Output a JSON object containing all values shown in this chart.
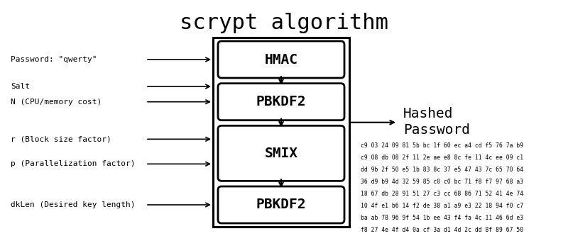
{
  "title": "scrypt algorithm",
  "title_fontsize": 22,
  "title_font": "monospace",
  "bg_color": "#ffffff",
  "inputs": [
    "Password: \"qwerty\"",
    "Salt",
    "N (CPU/memory cost)",
    "r (Block size factor)",
    "p (Parallelization factor)",
    "dkLen (Desired key length)"
  ],
  "box_labels": [
    "HMAC",
    "PBKDF2",
    "SMIX",
    "PBKDF2"
  ],
  "hashed_password_label": "Hashed\nPassword",
  "hash_lines": [
    "c9 03 24 09 81 5b bc 1f 60 ec a4 cd f5 76 7a b9",
    "c9 08 db 08 2f 11 2e ae e8 8c fe 11 4c ee 09 c1",
    "dd 9b 2f 50 e5 1b 83 8c 37 e5 47 43 7c 65 70 64",
    "36 d9 b9 4d 32 59 85 c0 c0 bc 71 f8 f7 97 68 a3",
    "18 67 db 28 91 51 27 c3 cc 68 86 71 52 41 4e 74",
    "10 4f e1 b6 14 f2 de 38 a1 a9 e3 22 18 94 f0 c7",
    "ba ab 78 96 9f 54 1b ee 43 f4 fa 4c 11 46 6d e3",
    "f8 27 4e 4f d4 0a cf 3a d1 4d 2c dd 8f 89 67 50"
  ]
}
